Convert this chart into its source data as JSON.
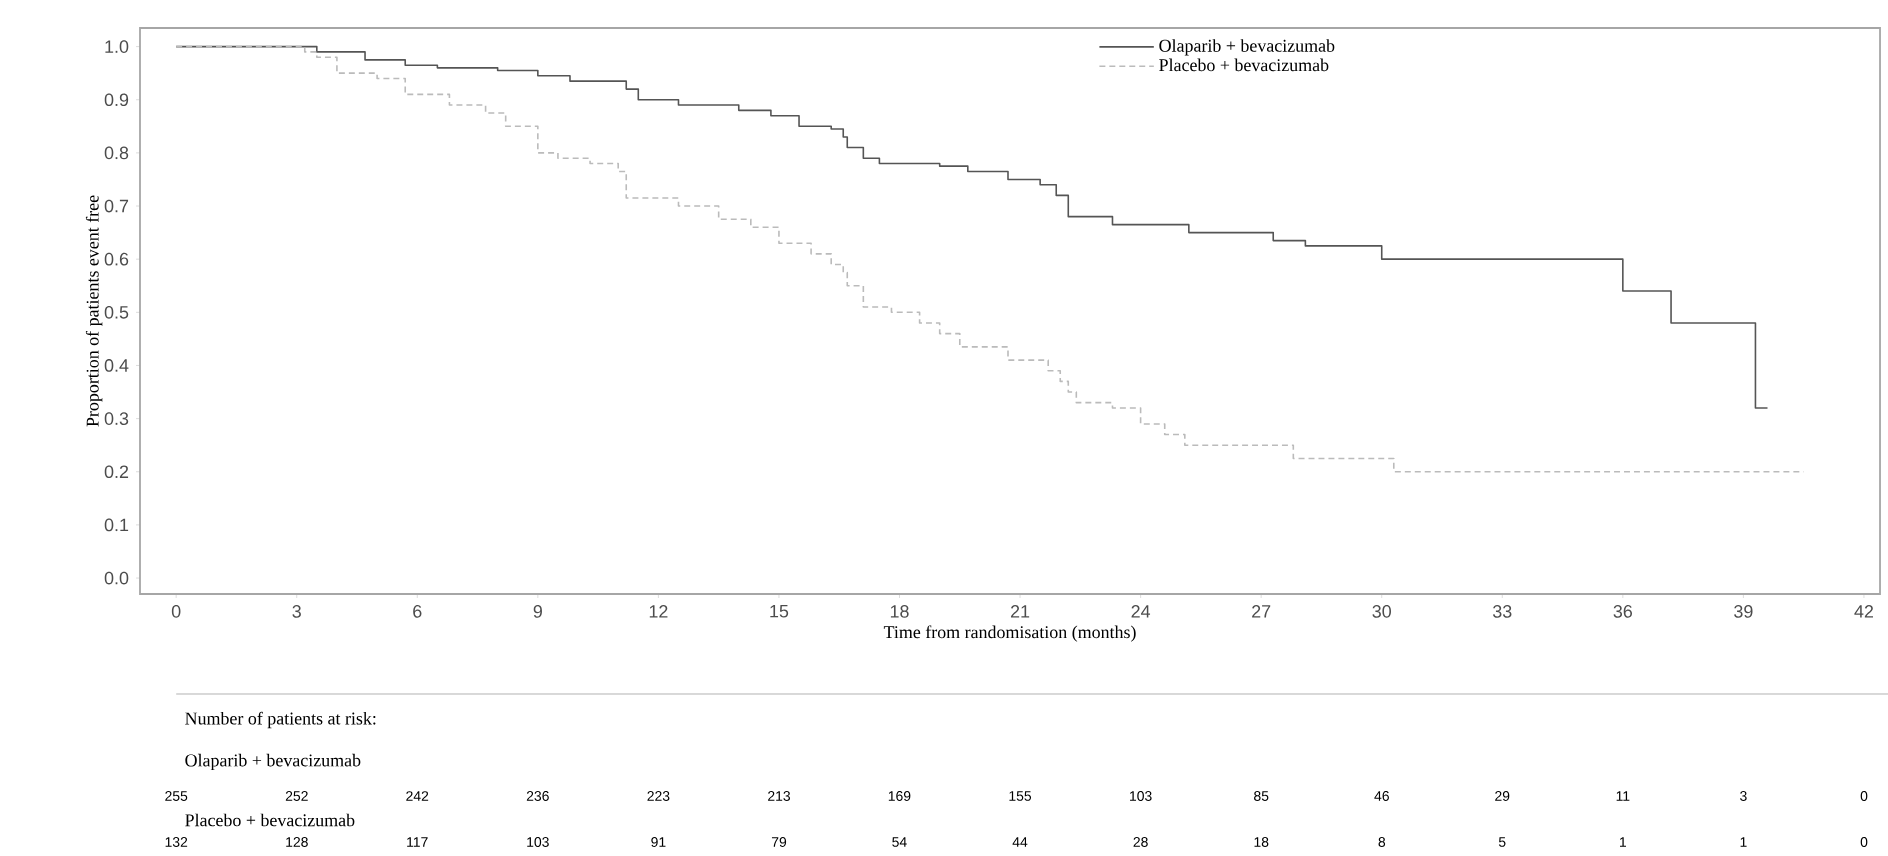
{
  "chart_data": {
    "type": "step",
    "xlabel": "Time from randomisation (months)",
    "ylabel": "Proportion of patients event free",
    "xlim": [
      -0.9,
      42.4
    ],
    "ylim": [
      -0.03,
      1.035
    ],
    "xticks": [
      0,
      3,
      6,
      9,
      12,
      15,
      18,
      21,
      24,
      27,
      30,
      33,
      36,
      39,
      42
    ],
    "yticks": [
      {
        "value": 0,
        "label": "0.0"
      },
      {
        "value": 0.1,
        "label": "0.1"
      },
      {
        "value": 0.2,
        "label": "0.2"
      },
      {
        "value": 0.3,
        "label": "0.3"
      },
      {
        "value": 0.4,
        "label": "0.4"
      },
      {
        "value": 0.5,
        "label": "0.5"
      },
      {
        "value": 0.6,
        "label": "0.6"
      },
      {
        "value": 0.7,
        "label": "0.7"
      },
      {
        "value": 0.8,
        "label": "0.8"
      },
      {
        "value": 0.9,
        "label": "0.9"
      },
      {
        "value": 1,
        "label": "1.0"
      }
    ],
    "legend": "top",
    "marker": "none",
    "series": [
      {
        "name": "Olaparib + bevacizumab",
        "color": "#555555",
        "line_style": "solid",
        "x": [
          0,
          3.5,
          4.7,
          5.7,
          6.5,
          8,
          9,
          9.8,
          11.2,
          11.5,
          12.5,
          14,
          14.8,
          15.5,
          16.3,
          16.6,
          16.7,
          17.1,
          17.5,
          19,
          19.7,
          20.7,
          21.5,
          21.9,
          22.2,
          23.3,
          25.2,
          27.3,
          28.1,
          30,
          36,
          37.2,
          39.3,
          39.6
        ],
        "values": [
          1,
          0.99,
          0.975,
          0.965,
          0.96,
          0.955,
          0.945,
          0.935,
          0.92,
          0.9,
          0.89,
          0.88,
          0.87,
          0.85,
          0.845,
          0.83,
          0.81,
          0.79,
          0.78,
          0.775,
          0.765,
          0.75,
          0.74,
          0.72,
          0.68,
          0.665,
          0.65,
          0.635,
          0.625,
          0.6,
          0.54,
          0.48,
          0.32,
          0.32
        ]
      },
      {
        "name": "Placebo + bevacizumab",
        "color": "#bbbbbb",
        "line_style": "dashed",
        "x": [
          0,
          3.2,
          3.5,
          4,
          5,
          5.7,
          6.8,
          7.7,
          8.2,
          9,
          9.5,
          10.3,
          11,
          11.2,
          12.5,
          13.5,
          14.3,
          15,
          15.8,
          16.3,
          16.6,
          16.7,
          17.1,
          17.8,
          18.5,
          19,
          19.5,
          20.7,
          21.7,
          22,
          22.2,
          22.4,
          23.3,
          24,
          24.6,
          25.1,
          27.8,
          30.3,
          40.5
        ],
        "values": [
          1,
          0.99,
          0.98,
          0.95,
          0.94,
          0.91,
          0.89,
          0.875,
          0.85,
          0.8,
          0.79,
          0.78,
          0.765,
          0.715,
          0.7,
          0.675,
          0.66,
          0.63,
          0.61,
          0.59,
          0.575,
          0.55,
          0.51,
          0.5,
          0.48,
          0.46,
          0.435,
          0.41,
          0.39,
          0.37,
          0.35,
          0.33,
          0.32,
          0.29,
          0.27,
          0.25,
          0.225,
          0.2,
          0.2
        ]
      }
    ],
    "annotations": [
      "Number of patients at risk:",
      "Olaparib + bevacizumab",
      "255",
      "252",
      "242",
      "236",
      "223",
      "213",
      "169",
      "155",
      "103",
      "85",
      "46",
      "29",
      "11",
      "3",
      "0",
      "Placebo + bevacizumab",
      "132",
      "128",
      "117",
      "103",
      "91",
      "79",
      "54",
      "44",
      "28",
      "18",
      "8",
      "5",
      "1",
      "1",
      "0"
    ]
  }
}
